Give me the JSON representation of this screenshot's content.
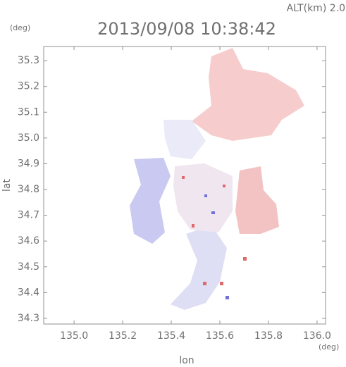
{
  "chart_data": {
    "type": "map",
    "title": "2013/09/08 10:38:42",
    "subtitle": "ALT(km) 2.0",
    "y_unit": "(deg)",
    "x_unit": "(deg)",
    "ylabel": "lat",
    "xlabel": "lon",
    "xlim": [
      134.875,
      136.035
    ],
    "ylim": [
      34.278,
      35.355
    ],
    "xticks": [
      {
        "value": 135.0,
        "label": "135.0"
      },
      135.2,
      135.4,
      135.6,
      135.8,
      {
        "value": 136.0,
        "label": "136.0"
      }
    ],
    "yticks": [
      34.3,
      34.4,
      34.5,
      34.6,
      34.7,
      34.8,
      34.9,
      {
        "value": 35.0,
        "label": "35.0"
      },
      35.1,
      35.2,
      35.3
    ]
  }
}
